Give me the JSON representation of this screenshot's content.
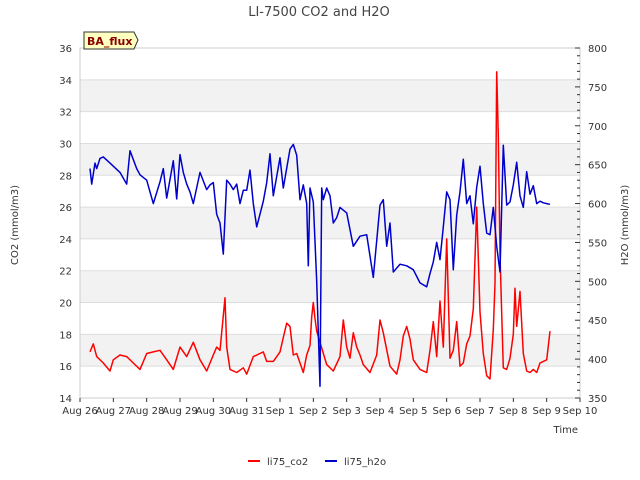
{
  "chart_data": {
    "type": "line",
    "title": "LI-7500 CO2 and H2O",
    "badge": "BA_flux",
    "xlabel": "Time",
    "ylabel_left": "CO2 (mmol/m3)",
    "ylabel_right": "H2O (mmol/m3)",
    "x_ticks": [
      "Aug 26",
      "Aug 27",
      "Aug 28",
      "Aug 29",
      "Aug 30",
      "Aug 31",
      "Sep 1",
      "Sep 2",
      "Sep 3",
      "Sep 4",
      "Sep 5",
      "Sep 6",
      "Sep 7",
      "Sep 8",
      "Sep 9",
      "Sep 10"
    ],
    "xlim_days": [
      0,
      15
    ],
    "ylim_left": [
      14,
      36
    ],
    "y_ticks_left": [
      14,
      16,
      18,
      20,
      22,
      24,
      26,
      28,
      30,
      32,
      34,
      36
    ],
    "ylim_right": [
      350,
      800
    ],
    "y_ticks_right": [
      350,
      400,
      450,
      500,
      550,
      600,
      650,
      700,
      750,
      800
    ],
    "series": [
      {
        "name": "li75_co2",
        "axis": "left",
        "color": "#ff0000",
        "x": [
          0.3,
          0.4,
          0.5,
          0.7,
          0.9,
          1.0,
          1.2,
          1.4,
          1.6,
          1.8,
          2.0,
          2.2,
          2.4,
          2.6,
          2.8,
          3.0,
          3.2,
          3.4,
          3.6,
          3.8,
          4.0,
          4.1,
          4.2,
          4.35,
          4.4,
          4.5,
          4.7,
          4.9,
          5.0,
          5.2,
          5.4,
          5.5,
          5.6,
          5.8,
          6.0,
          6.1,
          6.2,
          6.3,
          6.4,
          6.5,
          6.7,
          6.8,
          6.9,
          6.95,
          7.0,
          7.05,
          7.1,
          7.2,
          7.4,
          7.6,
          7.8,
          7.9,
          8.0,
          8.1,
          8.2,
          8.3,
          8.4,
          8.5,
          8.7,
          8.9,
          9.0,
          9.1,
          9.3,
          9.5,
          9.6,
          9.7,
          9.8,
          9.9,
          10.0,
          10.2,
          10.4,
          10.5,
          10.6,
          10.7,
          10.8,
          10.9,
          11.0,
          11.1,
          11.2,
          11.3,
          11.4,
          11.5,
          11.6,
          11.7,
          11.8,
          11.9,
          12.0,
          12.1,
          12.2,
          12.3,
          12.4,
          12.45,
          12.5,
          12.55,
          12.6,
          12.7,
          12.8,
          12.9,
          13.0,
          13.05,
          13.1,
          13.2,
          13.3,
          13.4,
          13.5,
          13.6,
          13.7,
          13.8,
          13.9,
          14.0,
          14.1
        ],
        "y": [
          16.9,
          17.4,
          16.6,
          16.2,
          15.7,
          16.4,
          16.7,
          16.6,
          16.2,
          15.8,
          16.8,
          16.9,
          17.0,
          16.4,
          15.8,
          17.2,
          16.6,
          17.5,
          16.4,
          15.7,
          16.7,
          17.2,
          17.0,
          20.3,
          17.2,
          15.8,
          15.6,
          15.9,
          15.5,
          16.6,
          16.8,
          16.9,
          16.3,
          16.3,
          16.9,
          17.8,
          18.7,
          18.5,
          16.7,
          16.8,
          15.6,
          16.7,
          17.3,
          19.1,
          20.0,
          19.0,
          18.2,
          17.5,
          16.1,
          15.7,
          16.6,
          18.9,
          17.2,
          16.5,
          18.1,
          17.2,
          16.7,
          16.1,
          15.6,
          16.7,
          18.9,
          18.1,
          16.0,
          15.5,
          16.4,
          17.9,
          18.5,
          17.7,
          16.4,
          15.8,
          15.6,
          17.0,
          18.8,
          16.6,
          20.1,
          17.2,
          24.0,
          16.5,
          17.0,
          18.8,
          16.0,
          16.2,
          17.4,
          17.9,
          19.6,
          26.0,
          19.4,
          16.8,
          15.4,
          15.2,
          18.3,
          21.2,
          34.5,
          30.5,
          23.0,
          15.9,
          15.8,
          16.5,
          18.0,
          20.9,
          18.5,
          20.7,
          16.8,
          15.7,
          15.6,
          15.8,
          15.6,
          16.2,
          16.3,
          16.4,
          18.2
        ]
      },
      {
        "name": "li75_h2o",
        "axis": "right",
        "color": "#0000cc",
        "x": [
          0.3,
          0.35,
          0.45,
          0.5,
          0.6,
          0.7,
          0.9,
          1.0,
          1.2,
          1.4,
          1.5,
          1.7,
          1.8,
          2.0,
          2.2,
          2.4,
          2.5,
          2.6,
          2.8,
          2.9,
          3.0,
          3.1,
          3.2,
          3.3,
          3.4,
          3.6,
          3.8,
          3.9,
          4.0,
          4.1,
          4.2,
          4.3,
          4.4,
          4.5,
          4.6,
          4.7,
          4.8,
          4.9,
          5.0,
          5.1,
          5.2,
          5.3,
          5.5,
          5.6,
          5.7,
          5.8,
          6.0,
          6.1,
          6.3,
          6.4,
          6.5,
          6.6,
          6.7,
          6.8,
          6.85,
          6.9,
          7.0,
          7.1,
          7.2,
          7.25,
          7.3,
          7.4,
          7.5,
          7.6,
          7.7,
          7.8,
          8.0,
          8.2,
          8.4,
          8.6,
          8.8,
          9.0,
          9.1,
          9.2,
          9.3,
          9.4,
          9.6,
          9.8,
          10.0,
          10.2,
          10.4,
          10.5,
          10.6,
          10.7,
          10.8,
          10.9,
          11.0,
          11.1,
          11.2,
          11.3,
          11.4,
          11.5,
          11.6,
          11.7,
          11.8,
          11.9,
          12.0,
          12.1,
          12.2,
          12.3,
          12.4,
          12.5,
          12.6,
          12.7,
          12.8,
          12.9,
          13.0,
          13.1,
          13.2,
          13.3,
          13.4,
          13.5,
          13.6,
          13.7,
          13.8,
          13.9,
          14.0,
          14.1
        ],
        "y": [
          645,
          625,
          652,
          645,
          658,
          660,
          652,
          648,
          640,
          625,
          668,
          645,
          637,
          630,
          600,
          628,
          645,
          607,
          655,
          606,
          663,
          640,
          625,
          615,
          600,
          640,
          618,
          624,
          627,
          586,
          575,
          535,
          630,
          625,
          618,
          625,
          600,
          617,
          617,
          643,
          600,
          570,
          603,
          627,
          664,
          610,
          659,
          620,
          670,
          676,
          662,
          605,
          624,
          600,
          520,
          620,
          602,
          500,
          365,
          620,
          605,
          620,
          610,
          575,
          582,
          595,
          588,
          545,
          558,
          560,
          505,
          598,
          605,
          545,
          575,
          512,
          522,
          520,
          515,
          498,
          493,
          510,
          525,
          550,
          528,
          570,
          615,
          605,
          515,
          585,
          615,
          657,
          600,
          610,
          574,
          621,
          648,
          600,
          562,
          560,
          595,
          545,
          512,
          675,
          598,
          602,
          624,
          653,
          610,
          595,
          641,
          612,
          623,
          600,
          603,
          601,
          600,
          599
        ]
      }
    ],
    "legend": [
      "li75_co2",
      "li75_h2o"
    ],
    "legend_position": "bottom-center",
    "grid": true
  }
}
